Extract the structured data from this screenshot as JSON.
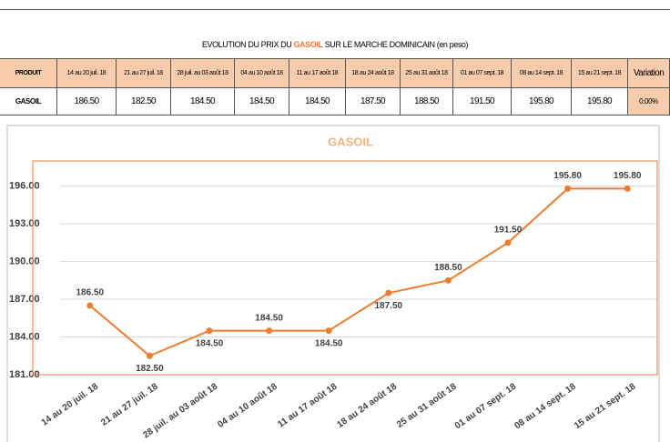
{
  "table": {
    "title_before": "EVOLUTION DU PRIX DU",
    "title_product": "GASOIL",
    "title_after": "SUR LE MARCHE DOMINICAIN (en peso)",
    "product_header": "PRODUIT",
    "variation_header": "Variation",
    "product": "GASOIL",
    "variation": "0.00%"
  },
  "chart_data": {
    "type": "line",
    "title": "GASOIL",
    "categories": [
      "14 au 20 juil. 18",
      "21 au 27 juil. 18",
      "28 juil. au 03 août 18",
      "04 au 10 août 18",
      "11 au 17 août 18",
      "18 au 24 août 18",
      "25 au 31 août 18",
      "01 au 07 sept. 18",
      "08 au 14 sept. 18",
      "15 au 21 sept. 18"
    ],
    "values": [
      186.5,
      182.5,
      184.5,
      184.5,
      184.5,
      187.5,
      188.5,
      191.5,
      195.8,
      195.8
    ],
    "value_labels": [
      "186.50",
      "182.50",
      "184.50",
      "184.50",
      "184.50",
      "187.50",
      "188.50",
      "191.50",
      "195.80",
      "195.80"
    ],
    "color": "#ed7d31",
    "ylim": [
      181,
      198
    ],
    "yticks": [
      {
        "value": 181,
        "label": "181.00"
      },
      {
        "value": 184,
        "label": "184.00"
      },
      {
        "value": 187,
        "label": "187.00"
      },
      {
        "value": 190,
        "label": "190.00"
      },
      {
        "value": 193,
        "label": "193.00"
      },
      {
        "value": 196,
        "label": "196.00"
      }
    ],
    "grid": true
  }
}
